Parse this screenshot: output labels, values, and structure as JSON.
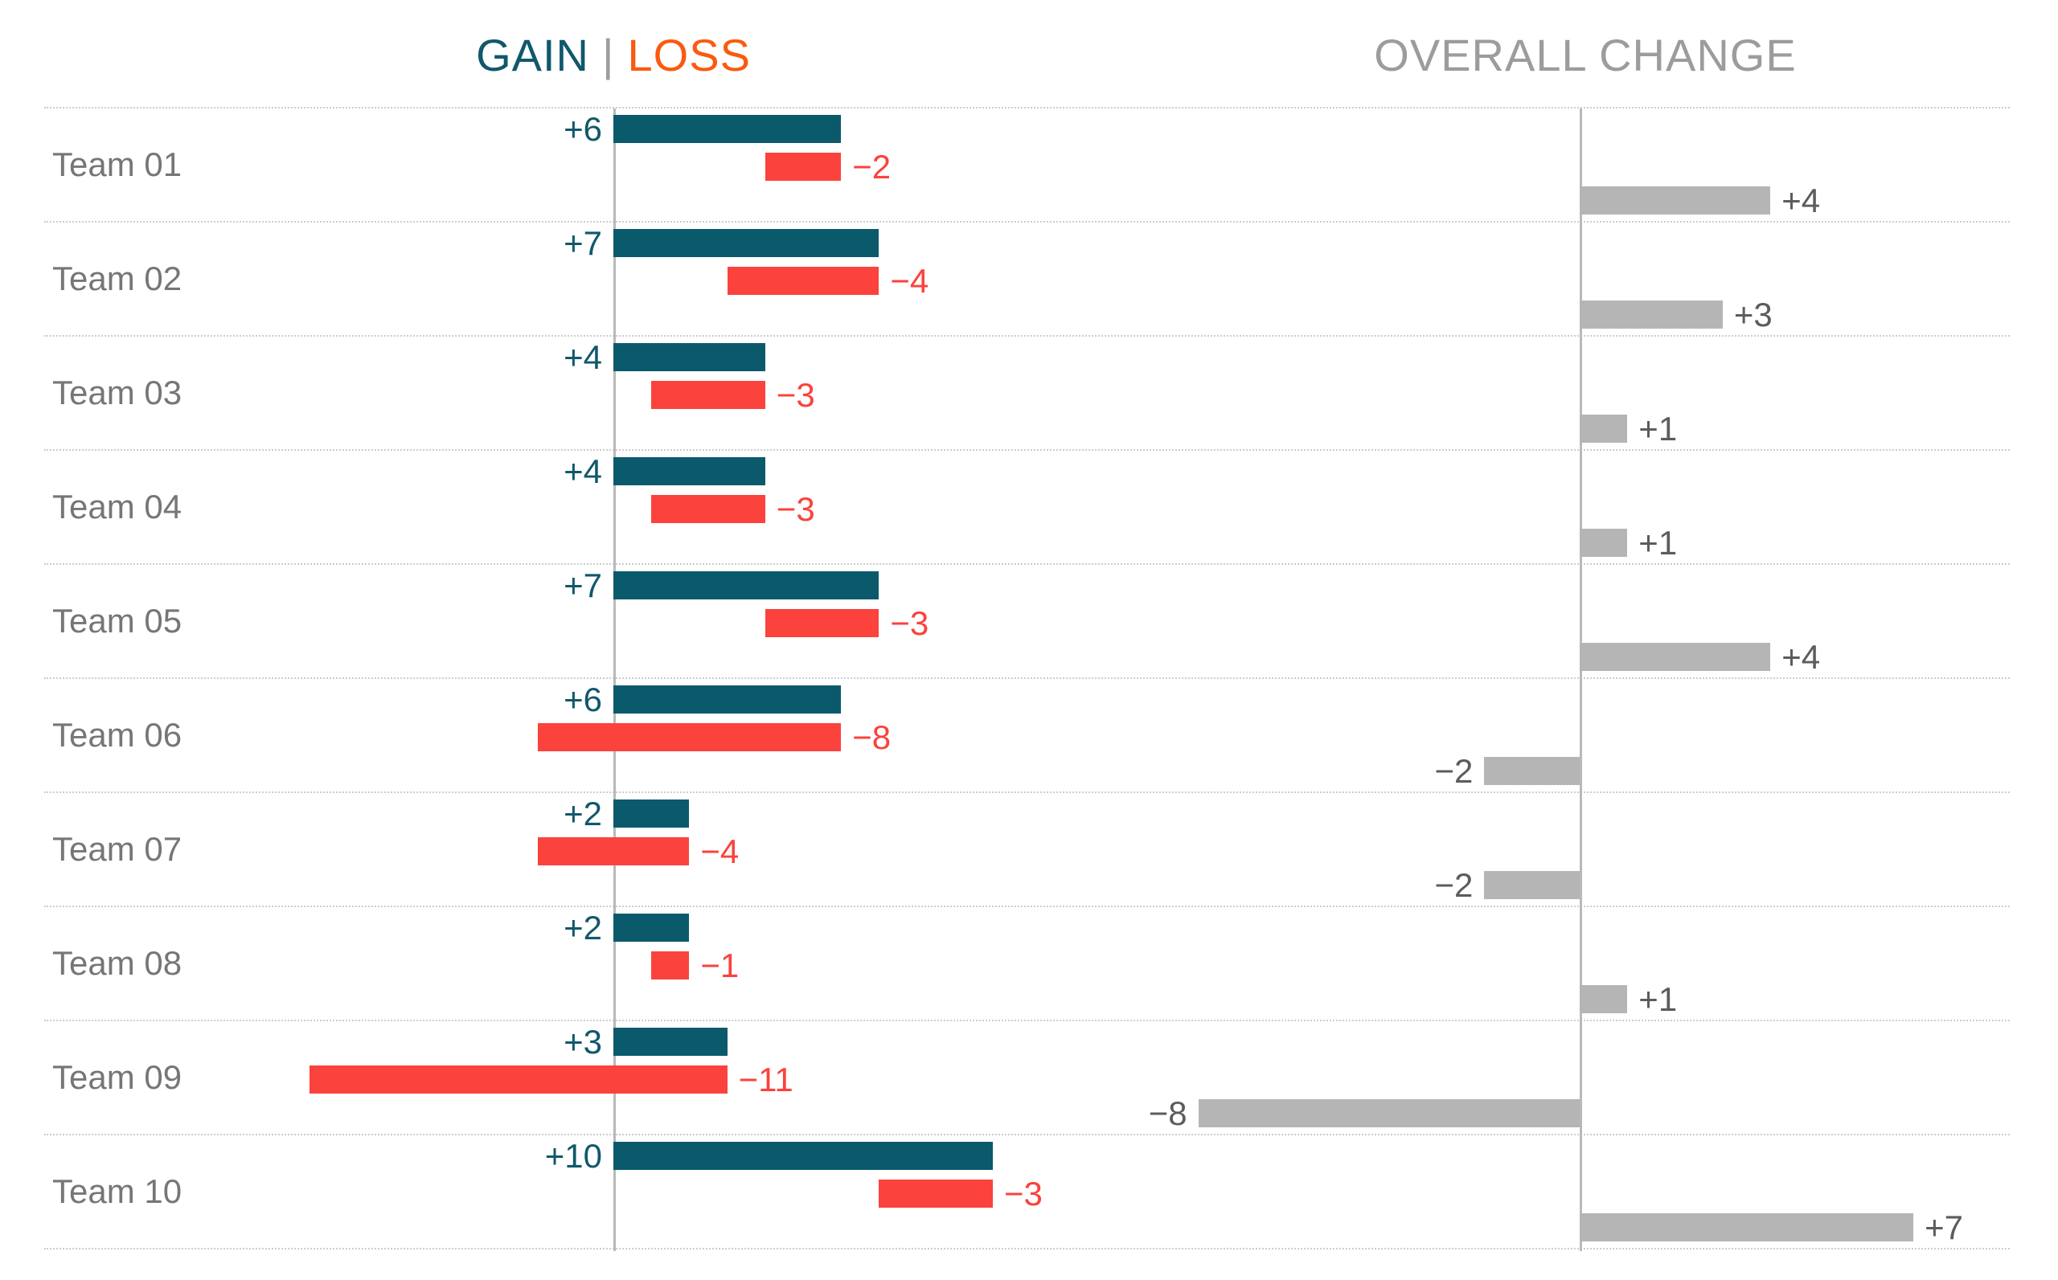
{
  "titles": {
    "gain": "GAIN",
    "separator": "|",
    "loss": "LOSS",
    "overall": "OVERALL CHANGE"
  },
  "colors": {
    "gain_bar": "#0a5a6c",
    "gain_text": "#11586b",
    "loss_bar": "#fb423c",
    "loss_text": "#fb423c",
    "loss_title": "#fa5a0f",
    "overall_bar": "#b5b5b5",
    "overall_text": "#5c5c5c",
    "overall_title": "#9c9c9c",
    "team_label": "#767676",
    "separator": "#9e9e9e",
    "axis": "#b9b9b9",
    "grid": "#cdcdcd"
  },
  "chart_data": {
    "type": "bar",
    "subtype": "diverging-waterfall-with-overall-change",
    "orientation": "horizontal",
    "grid": "dotted horizontal row separators",
    "legend_position": "none (color-coded titles above each panel)",
    "categories": [
      "Team 01",
      "Team 02",
      "Team 03",
      "Team 04",
      "Team 05",
      "Team 06",
      "Team 07",
      "Team 08",
      "Team 09",
      "Team 10"
    ],
    "series": [
      {
        "name": "Gain",
        "values": [
          6,
          7,
          4,
          4,
          7,
          6,
          2,
          2,
          3,
          10
        ]
      },
      {
        "name": "Loss",
        "values": [
          -2,
          -4,
          -3,
          -3,
          -3,
          -8,
          -4,
          -1,
          -11,
          -3
        ]
      },
      {
        "name": "Overall Change",
        "values": [
          4,
          3,
          1,
          1,
          4,
          -2,
          -2,
          1,
          -8,
          7
        ]
      }
    ],
    "value_labels": {
      "gain": [
        "+6",
        "+7",
        "+4",
        "+4",
        "+7",
        "+6",
        "+2",
        "+2",
        "+3",
        "+10"
      ],
      "loss": [
        "−2",
        "−4",
        "−3",
        "−3",
        "−3",
        "−8",
        "−4",
        "−1",
        "−11",
        "−3"
      ],
      "overall": [
        "+4",
        "+3",
        "+1",
        "+1",
        "+4",
        "−2",
        "−2",
        "+1",
        "−8",
        "+7"
      ]
    },
    "notes": "Gain bars start at the left axis and extend right. Loss bars are right-aligned to the end of the gain bar and extend left by the loss amount (waterfall style). Overall Change = Gain + Loss, drawn in the right panel from its own axis: positive bars extend right, negative bars extend left.",
    "title": "GAIN | LOSS  /  OVERALL CHANGE"
  }
}
